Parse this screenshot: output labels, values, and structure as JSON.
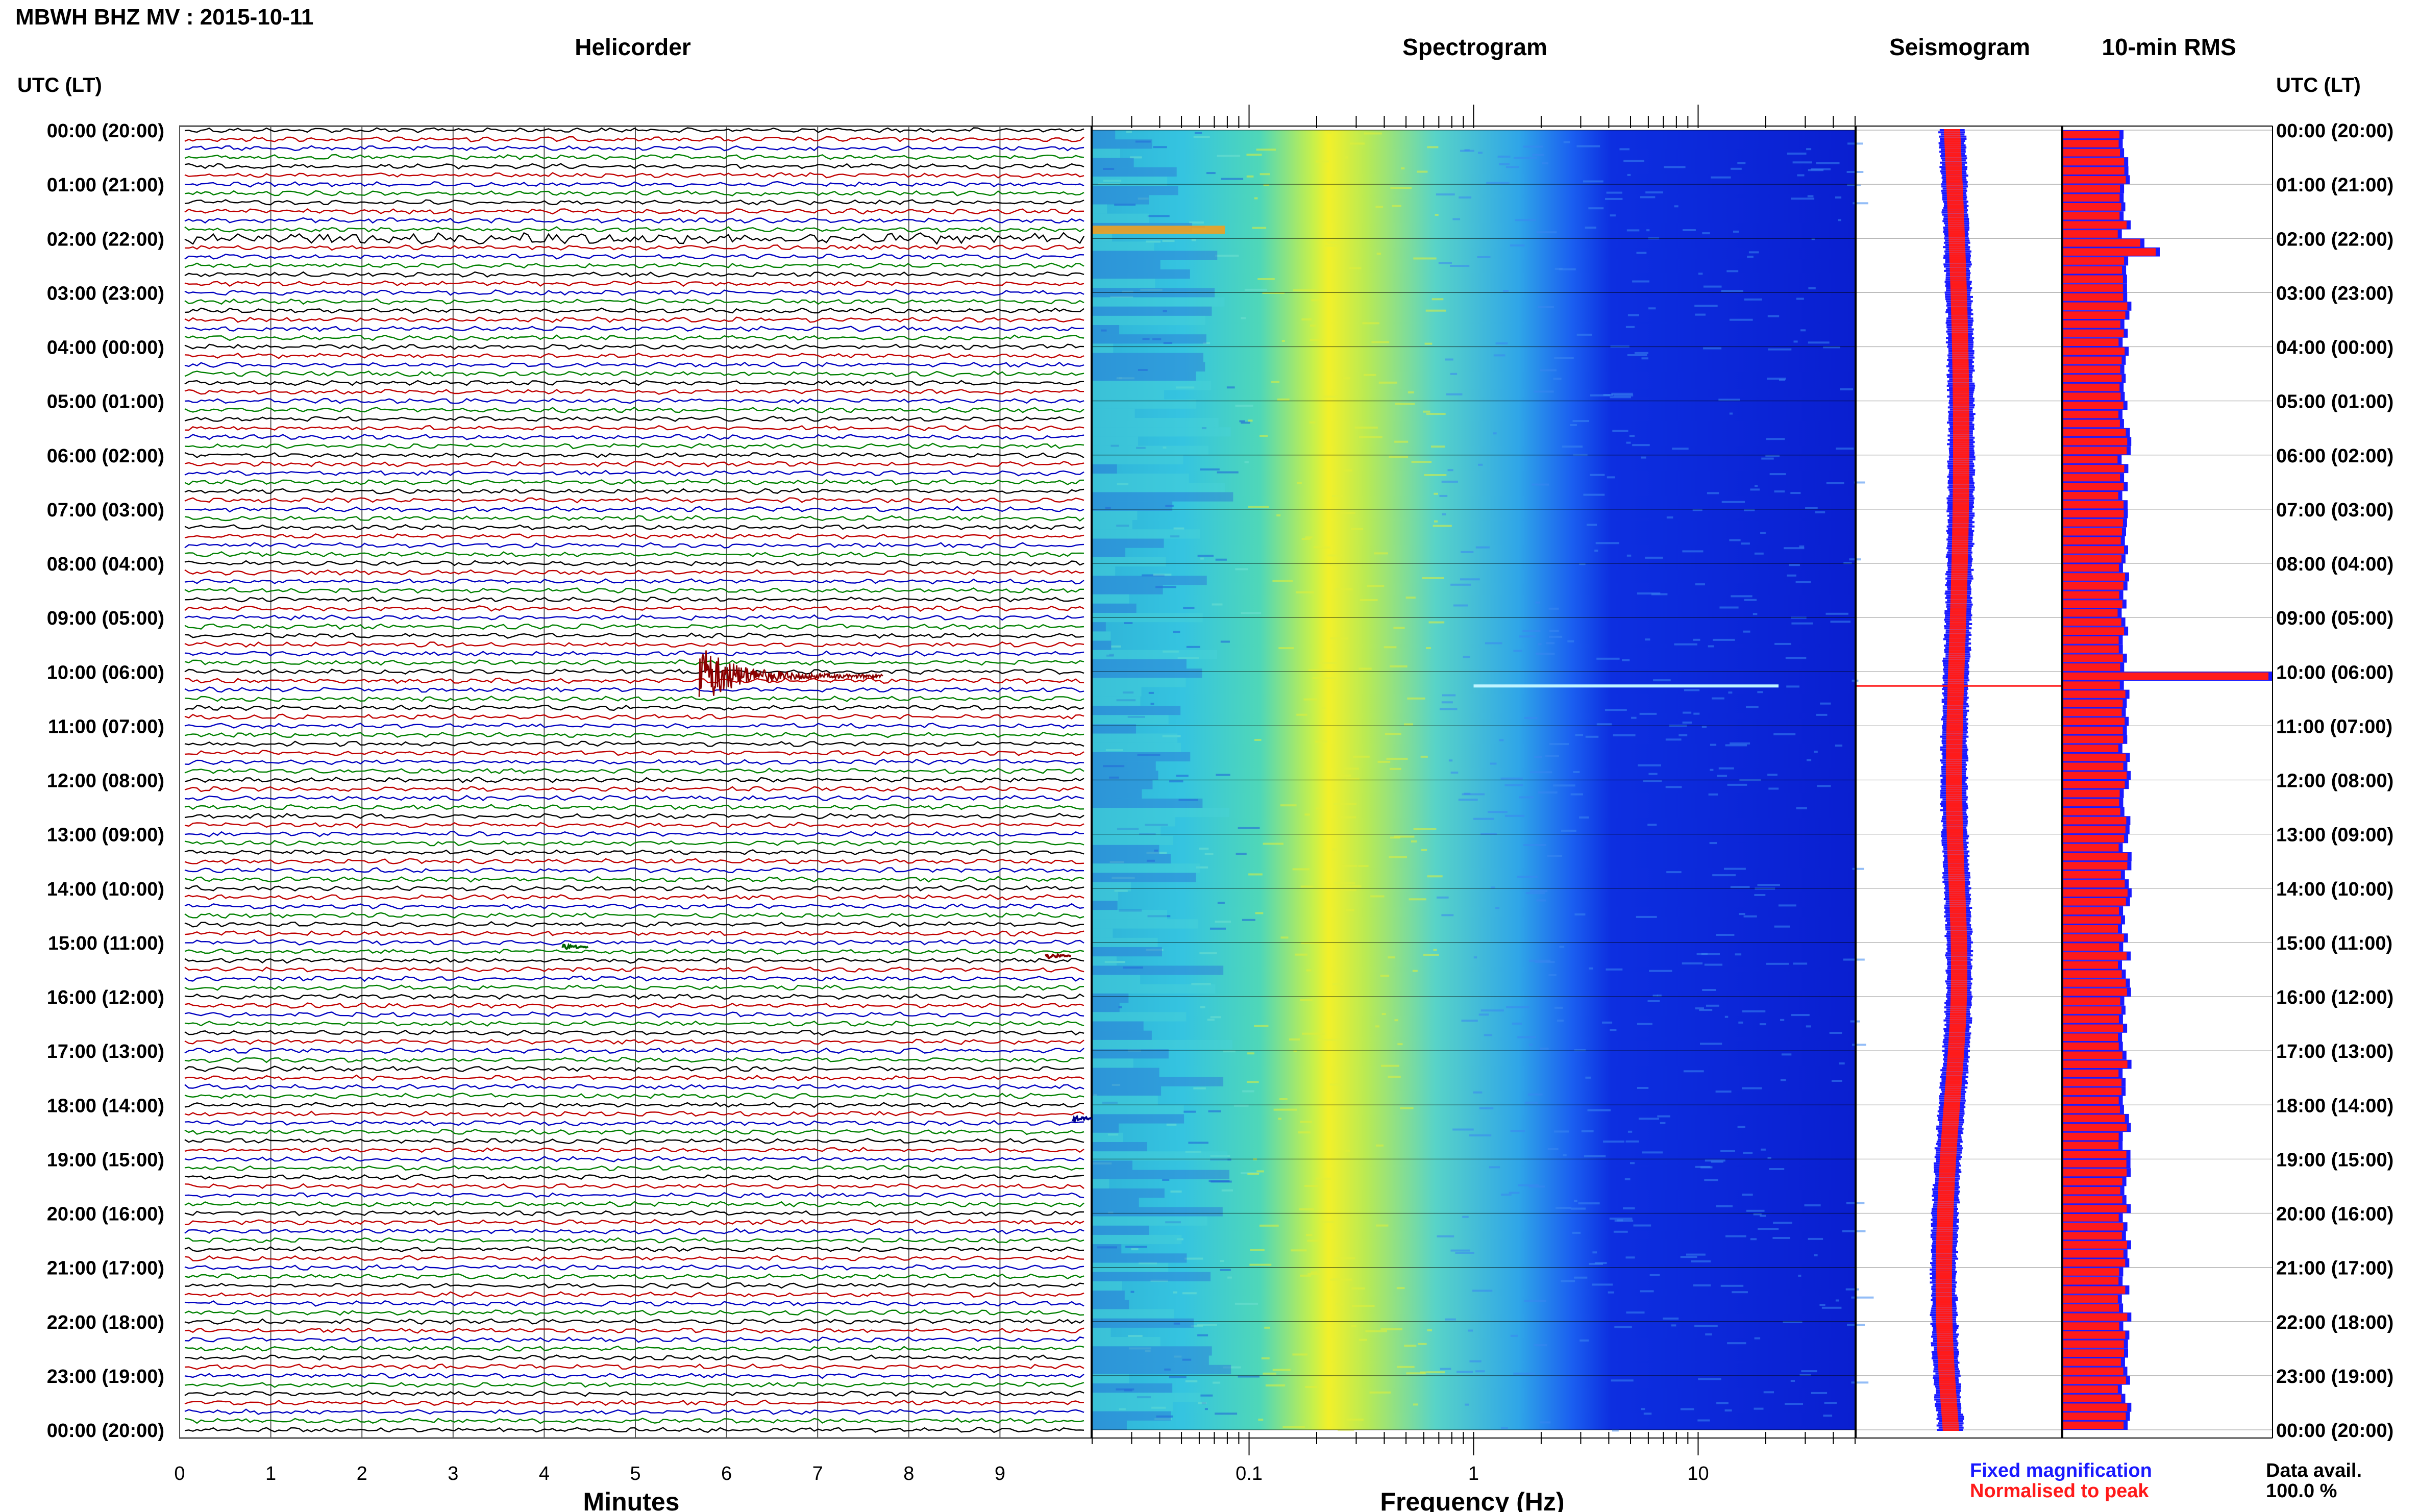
{
  "header": {
    "station": "MBWH BHZ MV : 2015-10-11",
    "panel_titles": {
      "helicorder": "Helicorder",
      "spectrogram": "Spectrogram",
      "seismogram": "Seismogram",
      "rms": "10-min RMS"
    },
    "utc_header": "UTC (LT)"
  },
  "axes": {
    "helicorder_xlabel": "Minutes",
    "spectrogram_xlabel": "Frequency (Hz)"
  },
  "legend": {
    "fixed": "Fixed magnification",
    "normalised": "Normalised to peak",
    "fixed_color": "#1a1aff",
    "normalised_color": "#ff1a1a"
  },
  "data_avail": {
    "label": "Data avail.",
    "value": "100.0 %"
  },
  "chart_data": [
    {
      "type": "line",
      "panel": "helicorder",
      "title": "Helicorder",
      "xlabel": "Minutes",
      "x_ticks": [
        "0",
        "1",
        "2",
        "3",
        "4",
        "5",
        "6",
        "7",
        "8",
        "9"
      ],
      "xlim": [
        0,
        10
      ],
      "rows": 145,
      "row_minutes": 10,
      "trace_colors": [
        "#000000",
        "#c00000",
        "#0000c0",
        "#008000"
      ],
      "events": [
        {
          "time_utc": "10:00",
          "minute": 5.7,
          "description": "large event"
        },
        {
          "time_utc": "15:00",
          "minute": 4.2
        },
        {
          "time_utc": "15:10",
          "minute": 9.5
        },
        {
          "time_utc": "18:10",
          "minute": 9.8
        }
      ]
    },
    {
      "type": "heatmap",
      "panel": "spectrogram",
      "title": "Spectrogram",
      "xlabel": "Frequency (Hz)",
      "x_scale": "log",
      "x_ticks": [
        "0.1",
        "1",
        "10"
      ],
      "xlim": [
        0.02,
        50
      ]
    },
    {
      "type": "line",
      "panel": "seismogram",
      "title": "Seismogram",
      "series": [
        {
          "name": "Fixed magnification",
          "color": "#1a1aff"
        },
        {
          "name": "Normalised to peak",
          "color": "#ff1a1a"
        }
      ]
    },
    {
      "type": "bar",
      "panel": "rms",
      "title": "10-min RMS",
      "orientation": "horizontal",
      "peak_time_utc": "10:00"
    }
  ],
  "time_labels": [
    "00:00 (20:00)",
    "01:00 (21:00)",
    "02:00 (22:00)",
    "03:00 (23:00)",
    "04:00 (00:00)",
    "05:00 (01:00)",
    "06:00 (02:00)",
    "07:00 (03:00)",
    "08:00 (04:00)",
    "09:00 (05:00)",
    "10:00 (06:00)",
    "11:00 (07:00)",
    "12:00 (08:00)",
    "13:00 (09:00)",
    "14:00 (10:00)",
    "15:00 (11:00)",
    "16:00 (12:00)",
    "17:00 (13:00)",
    "18:00 (14:00)",
    "19:00 (15:00)",
    "20:00 (16:00)",
    "21:00 (17:00)",
    "22:00 (18:00)",
    "23:00 (19:00)",
    "00:00 (20:00)"
  ]
}
